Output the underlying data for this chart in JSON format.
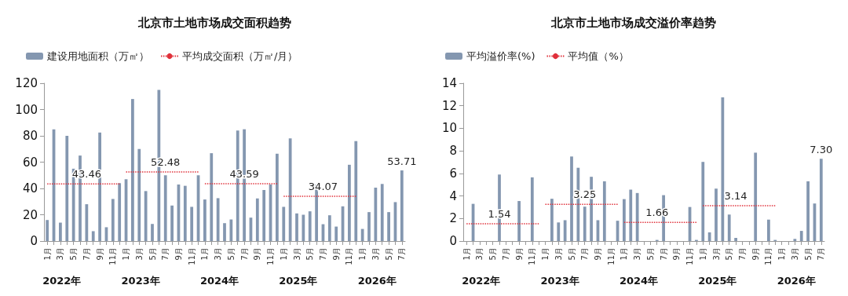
{
  "chart_data": [
    {
      "type": "bar",
      "title": "北京市土地市场成交面积趋势",
      "legend": "top left",
      "marker": "none",
      "categories": [
        "1月",
        null,
        "3月",
        null,
        "5月",
        null,
        "7月",
        null,
        "9月",
        null,
        "11月",
        null,
        "1月",
        null,
        "3月",
        null,
        "5月",
        null,
        "7月",
        null,
        "9月",
        null,
        "11月",
        null,
        "1月",
        null,
        "3月",
        null,
        "5月",
        null,
        "7月",
        null,
        "9月",
        null,
        "11月",
        null,
        "1月",
        null,
        "3月",
        null,
        "5月",
        null,
        "7月",
        null,
        "9月",
        null,
        "11月",
        null,
        "1月",
        null,
        "3月",
        null,
        "5月",
        null,
        "7月"
      ],
      "ylim": [
        0,
        120
      ],
      "yticks": [
        0,
        20,
        40,
        60,
        80,
        100,
        120
      ],
      "annotations": [
        "2022年",
        "2023年",
        "2024年",
        "2025年",
        "2026年"
      ],
      "series": [
        {
          "name": "建设用地面积（万㎡）",
          "color": "#8497b0",
          "values": [
            16,
            85,
            14,
            80,
            55,
            65,
            28,
            7.5,
            82.5,
            10.5,
            32,
            44,
            47,
            108,
            70,
            38,
            13,
            115,
            50,
            27,
            43,
            42,
            26,
            50,
            31.6,
            66.8,
            32.6,
            13.6,
            16.4,
            84,
            85,
            17.8,
            32.4,
            38.8,
            43,
            66.4,
            26,
            78,
            21,
            20,
            22.6,
            43,
            12.8,
            19.6,
            11,
            26.4,
            58,
            76,
            9.2,
            22,
            40.6,
            43.4,
            22,
            29.6,
            53.71
          ],
          "value_labels": [
            null,
            null,
            null,
            null,
            null,
            null,
            null,
            null,
            null,
            null,
            null,
            null,
            null,
            null,
            null,
            null,
            null,
            null,
            null,
            null,
            null,
            null,
            null,
            null,
            null,
            null,
            null,
            null,
            null,
            null,
            null,
            null,
            null,
            null,
            null,
            null,
            null,
            null,
            null,
            null,
            null,
            null,
            null,
            null,
            null,
            null,
            null,
            null,
            null,
            null,
            null,
            null,
            null,
            null,
            "53.71"
          ]
        },
        {
          "name": "平均成交面积（万㎡/月）",
          "type": "line",
          "color": "#e0303a",
          "line_style": "dotted",
          "values": [
            43.46,
            43.46,
            43.46,
            43.46,
            43.46,
            43.46,
            43.46,
            43.46,
            43.46,
            43.46,
            43.46,
            43.46,
            null,
            null,
            null,
            null,
            null,
            null,
            null,
            null,
            null,
            null,
            null,
            null,
            null,
            null,
            null,
            null,
            null,
            null,
            null,
            null,
            null,
            null,
            null,
            null,
            null,
            null,
            null,
            null,
            null,
            null,
            null,
            null,
            null,
            null,
            null,
            null,
            null,
            null,
            null,
            null,
            null,
            null,
            null
          ],
          "value_labels": [
            null,
            null,
            null,
            null,
            null,
            null,
            "43.46",
            null,
            null,
            null,
            null,
            null,
            null,
            null,
            null,
            null,
            null,
            null,
            null,
            null,
            null,
            null,
            null,
            null,
            null,
            null,
            null,
            null,
            null,
            null,
            null,
            null,
            null,
            null,
            null,
            null,
            null,
            null,
            null,
            null,
            null,
            null,
            null,
            null,
            null,
            null,
            null,
            null,
            null,
            null,
            null,
            null,
            null,
            null,
            null
          ]
        },
        {
          "type": "line",
          "color": "#e0303a",
          "line_style": "dotted",
          "values": [
            null,
            null,
            null,
            null,
            null,
            null,
            null,
            null,
            null,
            null,
            null,
            null,
            52.48,
            52.48,
            52.48,
            52.48,
            52.48,
            52.48,
            52.48,
            52.48,
            52.48,
            52.48,
            52.48,
            52.48,
            null,
            null,
            null,
            null,
            null,
            null,
            null,
            null,
            null,
            null,
            null,
            null,
            null,
            null,
            null,
            null,
            null,
            null,
            null,
            null,
            null,
            null,
            null,
            null,
            null,
            null,
            null,
            null,
            null,
            null,
            null
          ],
          "value_labels": [
            null,
            null,
            null,
            null,
            null,
            null,
            null,
            null,
            null,
            null,
            null,
            null,
            null,
            null,
            null,
            null,
            null,
            null,
            "52.48",
            null,
            null,
            null,
            null,
            null,
            null,
            null,
            null,
            null,
            null,
            null,
            null,
            null,
            null,
            null,
            null,
            null,
            null,
            null,
            null,
            null,
            null,
            null,
            null,
            null,
            null,
            null,
            null,
            null,
            null,
            null,
            null,
            null,
            null,
            null,
            null
          ]
        },
        {
          "type": "line",
          "color": "#e0303a",
          "line_style": "dotted",
          "values": [
            null,
            null,
            null,
            null,
            null,
            null,
            null,
            null,
            null,
            null,
            null,
            null,
            null,
            null,
            null,
            null,
            null,
            null,
            null,
            null,
            null,
            null,
            null,
            null,
            43.59,
            43.59,
            43.59,
            43.59,
            43.59,
            43.59,
            43.59,
            43.59,
            43.59,
            43.59,
            43.59,
            43.59,
            null,
            null,
            null,
            null,
            null,
            null,
            null,
            null,
            null,
            null,
            null,
            null,
            null,
            null,
            null,
            null,
            null,
            null,
            null
          ],
          "value_labels": [
            null,
            null,
            null,
            null,
            null,
            null,
            null,
            null,
            null,
            null,
            null,
            null,
            null,
            null,
            null,
            null,
            null,
            null,
            null,
            null,
            null,
            null,
            null,
            null,
            null,
            null,
            null,
            null,
            null,
            null,
            "43.59",
            null,
            null,
            null,
            null,
            null,
            null,
            null,
            null,
            null,
            null,
            null,
            null,
            null,
            null,
            null,
            null,
            null,
            null,
            null,
            null,
            null,
            null,
            null,
            null
          ]
        },
        {
          "type": "line",
          "color": "#e0303a",
          "line_style": "dotted",
          "values": [
            null,
            null,
            null,
            null,
            null,
            null,
            null,
            null,
            null,
            null,
            null,
            null,
            null,
            null,
            null,
            null,
            null,
            null,
            null,
            null,
            null,
            null,
            null,
            null,
            null,
            null,
            null,
            null,
            null,
            null,
            null,
            null,
            null,
            null,
            null,
            null,
            34.07,
            34.07,
            34.07,
            34.07,
            34.07,
            34.07,
            34.07,
            34.07,
            34.07,
            34.07,
            34.07,
            34.07,
            null,
            null,
            null,
            null,
            null,
            null,
            null
          ],
          "value_labels": [
            null,
            null,
            null,
            null,
            null,
            null,
            null,
            null,
            null,
            null,
            null,
            null,
            null,
            null,
            null,
            null,
            null,
            null,
            null,
            null,
            null,
            null,
            null,
            null,
            null,
            null,
            null,
            null,
            null,
            null,
            null,
            null,
            null,
            null,
            null,
            null,
            null,
            null,
            null,
            null,
            null,
            null,
            "34.07",
            null,
            null,
            null,
            null,
            null,
            null,
            null,
            null,
            null,
            null,
            null,
            null
          ]
        }
      ]
    },
    {
      "type": "bar",
      "title": "北京市土地市场成交溢价率趋势",
      "legend": "top left",
      "marker": "none",
      "categories": [
        "1月",
        null,
        "3月",
        null,
        "5月",
        null,
        "7月",
        null,
        "9月",
        null,
        "11月",
        null,
        "1月",
        null,
        "3月",
        null,
        "5月",
        null,
        "7月",
        null,
        "9月",
        null,
        "11月",
        null,
        "1月",
        null,
        "3月",
        null,
        "5月",
        null,
        "7月",
        null,
        "9月",
        null,
        "11月",
        null,
        "1月",
        null,
        "3月",
        null,
        "5月",
        null,
        "7月",
        null,
        "9月",
        null,
        "11月",
        null,
        "1月",
        null,
        "3月",
        null,
        "5月",
        null,
        "7月"
      ],
      "ylim": [
        0,
        14
      ],
      "yticks": [
        0,
        2,
        4,
        6,
        8,
        10,
        12,
        14
      ],
      "annotations": [
        "2022年",
        "2023年",
        "2024年",
        "2025年",
        "2026年"
      ],
      "series": [
        {
          "name": "平均溢价率(%)",
          "color": "#8497b0",
          "values": [
            0,
            3.3,
            0,
            0,
            0,
            5.9,
            0,
            0,
            3.55,
            0,
            5.65,
            0,
            0,
            3.75,
            1.65,
            1.85,
            7.5,
            6.5,
            3.05,
            5.7,
            1.85,
            5.3,
            0,
            1.8,
            3.72,
            4.56,
            4.26,
            0,
            0,
            0.1,
            4.07,
            0,
            0,
            0,
            3.02,
            0.1,
            7.02,
            0.77,
            4.65,
            12.74,
            2.35,
            0.28,
            0,
            0,
            7.84,
            0,
            1.9,
            0.1,
            0,
            0,
            0.19,
            0.9,
            5.3,
            3.33,
            7.3
          ],
          "value_labels": [
            null,
            null,
            null,
            null,
            null,
            null,
            null,
            null,
            null,
            null,
            null,
            null,
            null,
            null,
            null,
            null,
            null,
            null,
            null,
            null,
            null,
            null,
            null,
            null,
            null,
            null,
            null,
            null,
            null,
            null,
            null,
            null,
            null,
            null,
            null,
            null,
            null,
            null,
            null,
            null,
            null,
            null,
            null,
            null,
            null,
            null,
            null,
            null,
            null,
            null,
            null,
            null,
            null,
            null,
            "7.30"
          ]
        },
        {
          "name": "平均值（%）",
          "type": "line",
          "color": "#e0303a",
          "line_style": "dotted",
          "values": [
            1.54,
            1.54,
            1.54,
            1.54,
            1.54,
            1.54,
            1.54,
            1.54,
            1.54,
            1.54,
            1.54,
            1.54,
            null,
            null,
            null,
            null,
            null,
            null,
            null,
            null,
            null,
            null,
            null,
            null,
            null,
            null,
            null,
            null,
            null,
            null,
            null,
            null,
            null,
            null,
            null,
            null,
            null,
            null,
            null,
            null,
            null,
            null,
            null,
            null,
            null,
            null,
            null,
            null,
            null,
            null,
            null,
            null,
            null,
            null,
            null
          ],
          "value_labels": [
            null,
            null,
            null,
            null,
            null,
            "1.54",
            null,
            null,
            null,
            null,
            null,
            null,
            null,
            null,
            null,
            null,
            null,
            null,
            null,
            null,
            null,
            null,
            null,
            null,
            null,
            null,
            null,
            null,
            null,
            null,
            null,
            null,
            null,
            null,
            null,
            null,
            null,
            null,
            null,
            null,
            null,
            null,
            null,
            null,
            null,
            null,
            null,
            null,
            null,
            null,
            null,
            null,
            null,
            null,
            null
          ]
        },
        {
          "type": "line",
          "color": "#e0303a",
          "line_style": "dotted",
          "values": [
            null,
            null,
            null,
            null,
            null,
            null,
            null,
            null,
            null,
            null,
            null,
            null,
            3.25,
            3.25,
            3.25,
            3.25,
            3.25,
            3.25,
            3.25,
            3.25,
            3.25,
            3.25,
            3.25,
            3.25,
            null,
            null,
            null,
            null,
            null,
            null,
            null,
            null,
            null,
            null,
            null,
            null,
            null,
            null,
            null,
            null,
            null,
            null,
            null,
            null,
            null,
            null,
            null,
            null,
            null,
            null,
            null,
            null,
            null,
            null,
            null
          ],
          "value_labels": [
            null,
            null,
            null,
            null,
            null,
            null,
            null,
            null,
            null,
            null,
            null,
            null,
            null,
            null,
            null,
            null,
            null,
            null,
            "3.25",
            null,
            null,
            null,
            null,
            null,
            null,
            null,
            null,
            null,
            null,
            null,
            null,
            null,
            null,
            null,
            null,
            null,
            null,
            null,
            null,
            null,
            null,
            null,
            null,
            null,
            null,
            null,
            null,
            null,
            null,
            null,
            null,
            null,
            null,
            null,
            null
          ]
        },
        {
          "type": "line",
          "color": "#e0303a",
          "line_style": "dotted",
          "values": [
            null,
            null,
            null,
            null,
            null,
            null,
            null,
            null,
            null,
            null,
            null,
            null,
            null,
            null,
            null,
            null,
            null,
            null,
            null,
            null,
            null,
            null,
            null,
            null,
            1.66,
            1.66,
            1.66,
            1.66,
            1.66,
            1.66,
            1.66,
            1.66,
            1.66,
            1.66,
            1.66,
            1.66,
            null,
            null,
            null,
            null,
            null,
            null,
            null,
            null,
            null,
            null,
            null,
            null,
            null,
            null,
            null,
            null,
            null,
            null,
            null
          ],
          "value_labels": [
            null,
            null,
            null,
            null,
            null,
            null,
            null,
            null,
            null,
            null,
            null,
            null,
            null,
            null,
            null,
            null,
            null,
            null,
            null,
            null,
            null,
            null,
            null,
            null,
            null,
            null,
            null,
            null,
            null,
            "1.66",
            null,
            null,
            null,
            null,
            null,
            null,
            null,
            null,
            null,
            null,
            null,
            null,
            null,
            null,
            null,
            null,
            null,
            null,
            null,
            null,
            null,
            null,
            null,
            null,
            null
          ]
        },
        {
          "type": "line",
          "color": "#e0303a",
          "line_style": "dotted",
          "values": [
            null,
            null,
            null,
            null,
            null,
            null,
            null,
            null,
            null,
            null,
            null,
            null,
            null,
            null,
            null,
            null,
            null,
            null,
            null,
            null,
            null,
            null,
            null,
            null,
            null,
            null,
            null,
            null,
            null,
            null,
            null,
            null,
            null,
            null,
            null,
            null,
            3.14,
            3.14,
            3.14,
            3.14,
            3.14,
            3.14,
            3.14,
            3.14,
            3.14,
            3.14,
            3.14,
            3.14,
            null,
            null,
            null,
            null,
            null,
            null,
            null
          ],
          "value_labels": [
            null,
            null,
            null,
            null,
            null,
            null,
            null,
            null,
            null,
            null,
            null,
            null,
            null,
            null,
            null,
            null,
            null,
            null,
            null,
            null,
            null,
            null,
            null,
            null,
            null,
            null,
            null,
            null,
            null,
            null,
            null,
            null,
            null,
            null,
            null,
            null,
            null,
            null,
            null,
            null,
            null,
            "3.14",
            null,
            null,
            null,
            null,
            null,
            null,
            null,
            null,
            null,
            null,
            null,
            null,
            null
          ]
        }
      ]
    }
  ]
}
